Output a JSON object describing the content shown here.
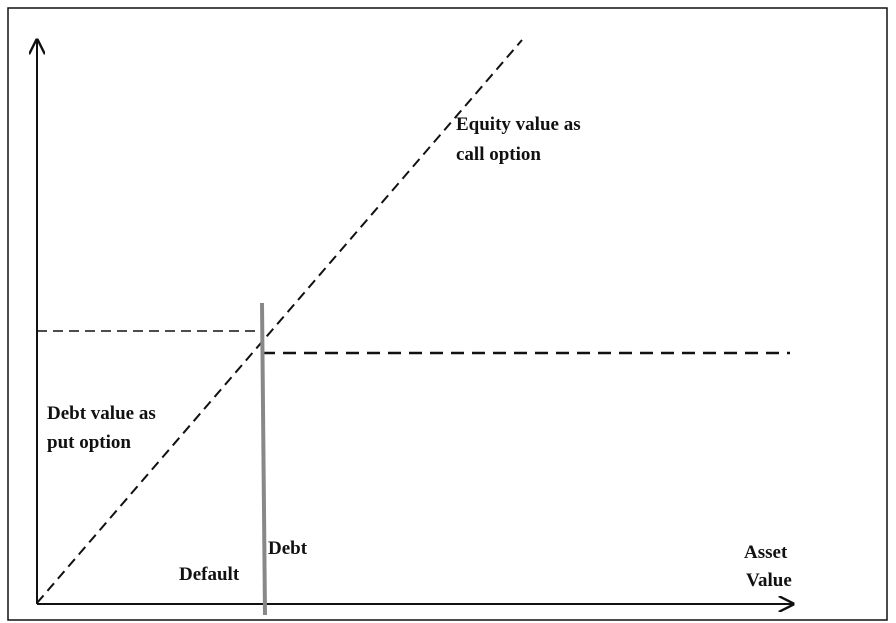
{
  "labels": {
    "equity": [
      "Equity value as",
      "call option"
    ],
    "debt_value": [
      "Debt value as",
      "put option"
    ],
    "debt": "Debt",
    "default": "Default",
    "asset": [
      "Asset",
      "Value"
    ]
  }
}
